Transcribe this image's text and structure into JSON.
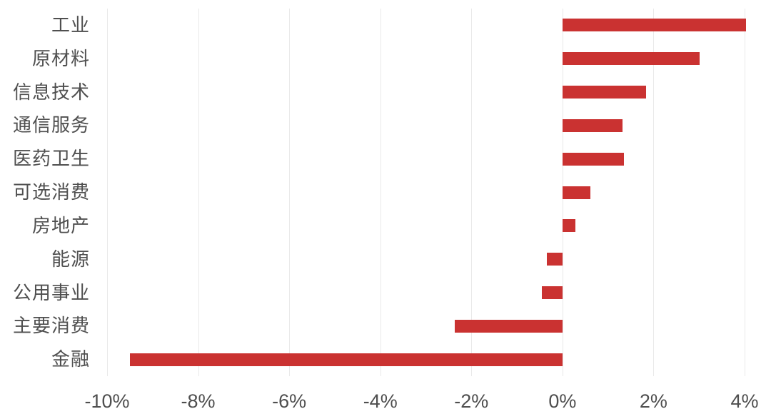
{
  "chart_data": {
    "type": "bar",
    "orientation": "horizontal",
    "title": "",
    "xlabel": "",
    "ylabel": "",
    "categories": [
      "工业",
      "原材料",
      "信息技术",
      "通信服务",
      "医药卫生",
      "可选消费",
      "房地产",
      "能源",
      "公用事业",
      "主要消费",
      "金融"
    ],
    "values": [
      4.03,
      3.02,
      1.83,
      1.32,
      1.35,
      0.62,
      0.29,
      -0.35,
      -0.45,
      -2.36,
      -9.5
    ],
    "unit": "%",
    "x_ticks": [
      "-10%",
      "-8%",
      "-6%",
      "-4%",
      "-2%",
      "0%",
      "2%",
      "4%"
    ],
    "x_tick_values": [
      -10,
      -8,
      -6,
      -4,
      -2,
      0,
      2,
      4
    ],
    "xlim": [
      -10,
      4
    ],
    "grid": true,
    "legend": false,
    "colors": {
      "bar": "#ca3231",
      "gridline": "#e9e9e9",
      "text": "#4f4f4f"
    }
  }
}
